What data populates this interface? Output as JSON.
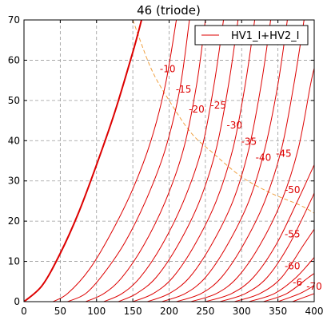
{
  "chart_data": {
    "type": "line",
    "title": "46 (triode)",
    "xlabel": "",
    "ylabel": "",
    "xlim": [
      0,
      400
    ],
    "ylim": [
      0,
      70
    ],
    "xticks": [
      0,
      50,
      100,
      150,
      200,
      250,
      300,
      350,
      400
    ],
    "yticks": [
      0,
      10,
      20,
      30,
      40,
      50,
      60,
      70
    ],
    "grid": true,
    "legend": {
      "position": "top-right",
      "entries": [
        "HV1_I+HV2_I"
      ]
    },
    "colors": {
      "curve": "#dd0000",
      "max_dissipation": "#f0a040",
      "grid": "#999999"
    },
    "series": [
      {
        "label": "",
        "bold": true,
        "points": [
          [
            0,
            0
          ],
          [
            25,
            4
          ],
          [
            50,
            12
          ],
          [
            75,
            22
          ],
          [
            100,
            34
          ],
          [
            125,
            47
          ],
          [
            150,
            62
          ],
          [
            162,
            70
          ]
        ]
      },
      {
        "label": "-10",
        "points": [
          [
            40,
            0
          ],
          [
            60,
            2
          ],
          [
            90,
            8
          ],
          [
            120,
            17
          ],
          [
            150,
            28
          ],
          [
            175,
            40
          ],
          [
            195,
            54
          ],
          [
            210,
            70
          ]
        ]
      },
      {
        "label": "-15",
        "points": [
          [
            60,
            0
          ],
          [
            85,
            2
          ],
          [
            110,
            7
          ],
          [
            140,
            15
          ],
          [
            170,
            26
          ],
          [
            195,
            38
          ],
          [
            215,
            53
          ],
          [
            228,
            70
          ]
        ]
      },
      {
        "label": "-20",
        "points": [
          [
            85,
            0
          ],
          [
            110,
            2
          ],
          [
            135,
            6
          ],
          [
            165,
            14
          ],
          [
            195,
            25
          ],
          [
            220,
            38
          ],
          [
            238,
            54
          ],
          [
            250,
            70
          ]
        ]
      },
      {
        "label": "-25",
        "points": [
          [
            110,
            0
          ],
          [
            135,
            2
          ],
          [
            160,
            6
          ],
          [
            190,
            14
          ],
          [
            220,
            25
          ],
          [
            245,
            38
          ],
          [
            262,
            54
          ],
          [
            275,
            70
          ]
        ]
      },
      {
        "label": "-30",
        "points": [
          [
            130,
            0
          ],
          [
            155,
            2
          ],
          [
            182,
            6
          ],
          [
            212,
            14
          ],
          [
            242,
            25
          ],
          [
            265,
            38
          ],
          [
            282,
            54
          ],
          [
            295,
            70
          ]
        ]
      },
      {
        "label": "-35",
        "points": [
          [
            150,
            0
          ],
          [
            178,
            2
          ],
          [
            205,
            6
          ],
          [
            235,
            14
          ],
          [
            265,
            25
          ],
          [
            288,
            38
          ],
          [
            305,
            54
          ],
          [
            318,
            70
          ]
        ]
      },
      {
        "label": "-40",
        "points": [
          [
            170,
            0
          ],
          [
            200,
            2
          ],
          [
            228,
            6
          ],
          [
            258,
            14
          ],
          [
            288,
            25
          ],
          [
            310,
            38
          ],
          [
            327,
            54
          ],
          [
            340,
            70
          ]
        ]
      },
      {
        "label": "-45",
        "points": [
          [
            190,
            0
          ],
          [
            222,
            2
          ],
          [
            250,
            6
          ],
          [
            280,
            14
          ],
          [
            310,
            25
          ],
          [
            332,
            38
          ],
          [
            350,
            54
          ],
          [
            363,
            70
          ]
        ]
      },
      {
        "label": "-50",
        "points": [
          [
            210,
            0
          ],
          [
            244,
            2
          ],
          [
            272,
            6
          ],
          [
            302,
            14
          ],
          [
            332,
            25
          ],
          [
            355,
            38
          ],
          [
            372,
            54
          ],
          [
            386,
            70
          ]
        ]
      },
      {
        "label": "-55",
        "points": [
          [
            230,
            0
          ],
          [
            265,
            2
          ],
          [
            294,
            6
          ],
          [
            325,
            14
          ],
          [
            355,
            25
          ],
          [
            378,
            38
          ],
          [
            395,
            54
          ],
          [
            400,
            58
          ]
        ]
      },
      {
        "label": "-60",
        "points": [
          [
            250,
            0
          ],
          [
            286,
            2
          ],
          [
            316,
            6
          ],
          [
            347,
            14
          ],
          [
            377,
            25
          ],
          [
            400,
            34
          ]
        ]
      },
      {
        "label": "-6",
        "points": [
          [
            270,
            0
          ],
          [
            305,
            2
          ],
          [
            335,
            6
          ],
          [
            365,
            14
          ],
          [
            395,
            25
          ],
          [
            400,
            27
          ]
        ]
      },
      {
        "label": "-70",
        "points": [
          [
            290,
            0
          ],
          [
            325,
            2
          ],
          [
            355,
            6
          ],
          [
            385,
            14
          ],
          [
            400,
            18
          ]
        ]
      },
      {
        "label": "",
        "points": [
          [
            310,
            0
          ],
          [
            345,
            2
          ],
          [
            375,
            6
          ],
          [
            400,
            11
          ]
        ]
      },
      {
        "label": "",
        "points": [
          [
            330,
            0
          ],
          [
            362,
            2
          ],
          [
            392,
            6
          ],
          [
            400,
            7
          ]
        ]
      },
      {
        "label": "",
        "points": [
          [
            350,
            0
          ],
          [
            380,
            2
          ],
          [
            400,
            4
          ]
        ]
      },
      {
        "label": "",
        "points": [
          [
            370,
            0
          ],
          [
            400,
            2
          ]
        ]
      }
    ],
    "curve_labels": [
      {
        "text": "-10",
        "x": 198,
        "y": 57
      },
      {
        "text": "-15",
        "x": 220,
        "y": 52
      },
      {
        "text": "-20",
        "x": 238,
        "y": 47
      },
      {
        "text": "-25",
        "x": 268,
        "y": 48
      },
      {
        "text": "-30",
        "x": 290,
        "y": 43
      },
      {
        "text": "-35",
        "x": 310,
        "y": 39
      },
      {
        "text": "-40",
        "x": 330,
        "y": 35
      },
      {
        "text": "-45",
        "x": 358,
        "y": 36
      },
      {
        "text": "-50",
        "x": 370,
        "y": 27
      },
      {
        "text": "-55",
        "x": 370,
        "y": 16
      },
      {
        "text": "-60",
        "x": 370,
        "y": 8
      },
      {
        "text": "-6",
        "x": 377,
        "y": 4
      },
      {
        "text": "-70",
        "x": 400,
        "y": 3
      }
    ],
    "max_dissipation": [
      [
        150,
        70
      ],
      [
        175,
        58
      ],
      [
        200,
        50
      ],
      [
        230,
        42
      ],
      [
        260,
        37
      ],
      [
        300,
        31
      ],
      [
        340,
        27
      ],
      [
        380,
        24
      ],
      [
        400,
        22
      ]
    ]
  }
}
